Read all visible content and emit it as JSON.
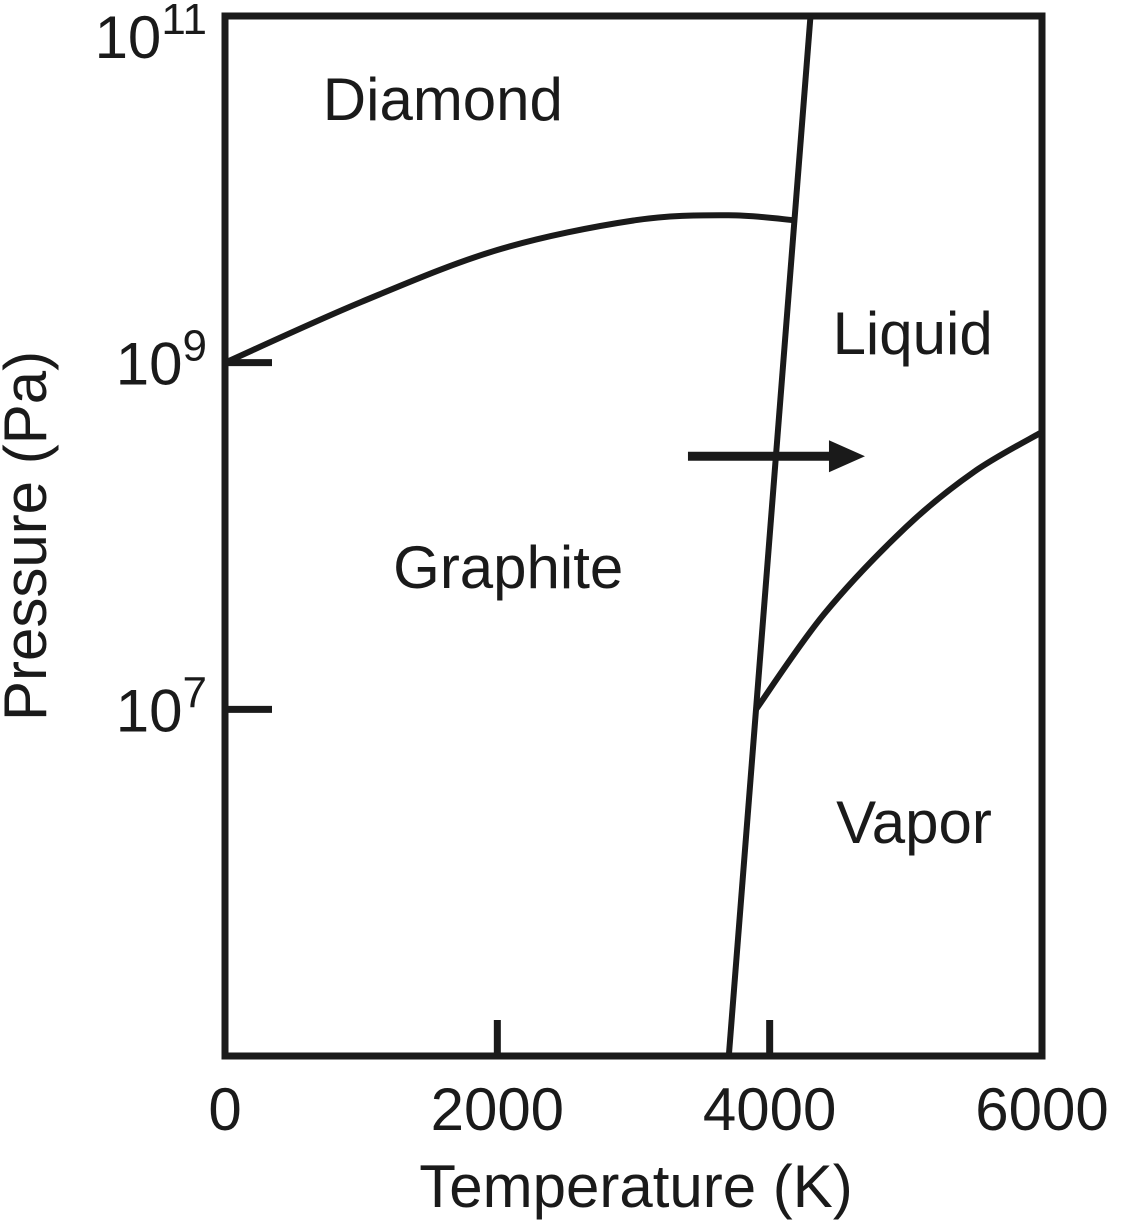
{
  "chart_data": {
    "type": "line",
    "title": "",
    "xlabel": "Temperature (K)",
    "ylabel": "Pressure (Pa)",
    "xlim": [
      0,
      6000
    ],
    "ylim_log10": [
      5,
      11
    ],
    "y_scale": "log",
    "x_ticks": [
      {
        "value": 0,
        "label": "0"
      },
      {
        "value": 2000,
        "label": "2000"
      },
      {
        "value": 4000,
        "label": "4000"
      },
      {
        "value": 6000,
        "label": "6000"
      }
    ],
    "y_ticks": [
      {
        "exp": 7,
        "base": "10",
        "sup": "7"
      },
      {
        "exp": 9,
        "base": "10",
        "sup": "9"
      },
      {
        "exp": 11,
        "base": "10",
        "sup": "11"
      }
    ],
    "regions": [
      {
        "label": "Diamond",
        "x": 1600,
        "log10p": 10.4
      },
      {
        "label": "Liquid",
        "x": 5050,
        "log10p": 9.05
      },
      {
        "label": "Graphite",
        "x": 2080,
        "log10p": 7.7
      },
      {
        "label": "Vapor",
        "x": 5060,
        "log10p": 6.23
      }
    ],
    "boundaries": [
      {
        "between": "graphite-diamond",
        "points": [
          [
            0,
            9.0
          ],
          [
            1000,
            9.35
          ],
          [
            2000,
            9.65
          ],
          [
            3000,
            9.82
          ],
          [
            3700,
            9.85
          ],
          [
            4200,
            9.82
          ]
        ]
      },
      {
        "between": "solid-liquid",
        "points": [
          [
            3700,
            5.0
          ],
          [
            4300,
            11.0
          ]
        ]
      },
      {
        "between": "liquid-vapor",
        "points": [
          [
            3900,
            7.0
          ],
          [
            4400,
            7.55
          ],
          [
            5000,
            8.05
          ],
          [
            5500,
            8.37
          ],
          [
            6000,
            8.6
          ]
        ]
      }
    ],
    "annotations": [
      {
        "type": "arrow",
        "from": [
          3400,
          8.46
        ],
        "to": [
          4700,
          8.46
        ]
      }
    ],
    "grid": false,
    "legend": "none",
    "color": "#1a1a1a"
  }
}
